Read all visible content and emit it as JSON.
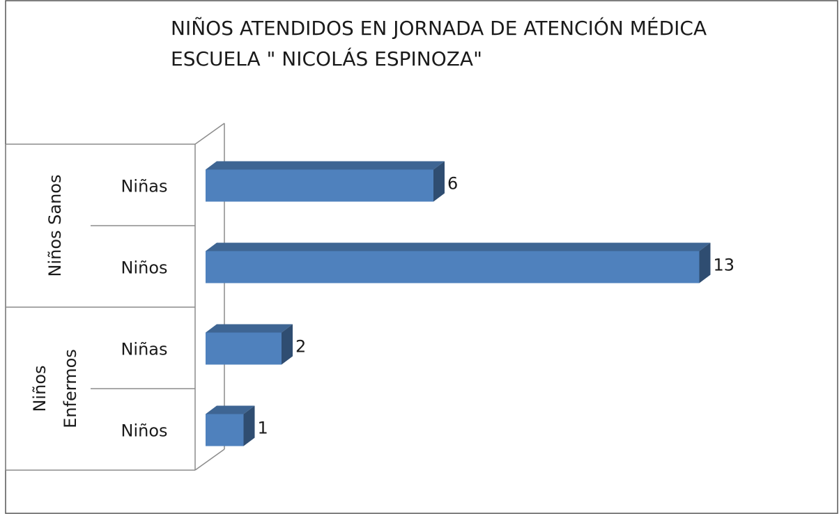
{
  "chart_data": {
    "type": "bar3d-horizontal",
    "title": [
      "NIÑOS ATENDIDOS EN JORNADA DE ATENCIÓN MÉDICA",
      "ESCUELA \" NICOLÁS ESPINOZA\""
    ],
    "groups": [
      {
        "name": [
          "Niños Sanos"
        ],
        "categories": [
          "Niñas",
          "Niños"
        ],
        "values": [
          6,
          13
        ]
      },
      {
        "name": [
          "Niños",
          "Enfermos"
        ],
        "categories": [
          "Niñas",
          "Niños"
        ],
        "values": [
          2,
          1
        ]
      }
    ],
    "color": "#4f81bd",
    "xlim": [
      0,
      14
    ]
  }
}
